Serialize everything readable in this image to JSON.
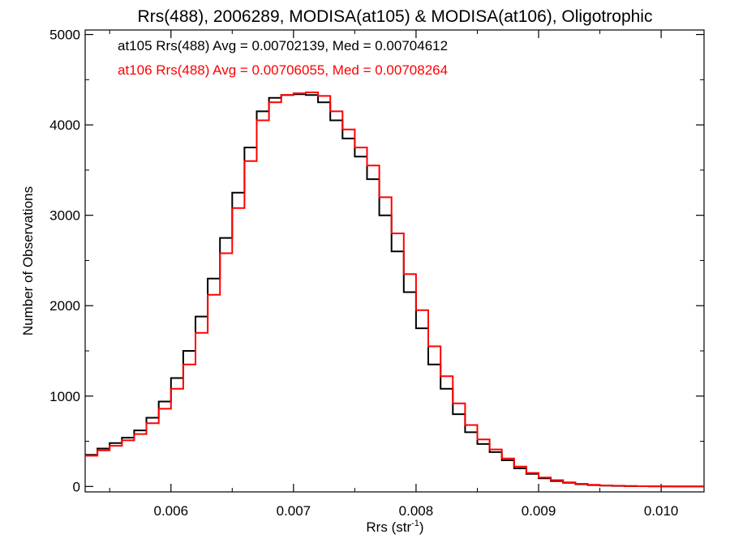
{
  "chart_data": {
    "type": "line",
    "title": "Rrs(488), 2006289, MODISA(at105) & MODISA(at106), Oligotrophic",
    "xlabel_main": "Rrs (str",
    "xlabel_sup": "-1",
    "xlabel_close": ")",
    "ylabel": "Number of Observations",
    "xlim": [
      0.0053,
      0.01035
    ],
    "ylim": [
      -60,
      5050
    ],
    "xticks": [
      0.006,
      0.007,
      0.008,
      0.009,
      0.01
    ],
    "xtick_labels": [
      "0.006",
      "0.007",
      "0.008",
      "0.009",
      "0.010"
    ],
    "yticks": [
      0,
      1000,
      2000,
      3000,
      4000,
      5000
    ],
    "ytick_labels": [
      "0",
      "1000",
      "2000",
      "3000",
      "4000",
      "5000"
    ],
    "annotations": [
      {
        "text": "at105 Rrs(488) Avg = 0.00702139, Med = 0.00704612",
        "color": "#000000"
      },
      {
        "text": "at106 Rrs(488) Avg = 0.00706055, Med = 0.00708264",
        "color": "#ff0000"
      }
    ],
    "series": [
      {
        "color": "#000000",
        "x": [
          0.0053,
          0.0054,
          0.0055,
          0.0056,
          0.0057,
          0.0058,
          0.0059,
          0.006,
          0.0061,
          0.0062,
          0.0063,
          0.0064,
          0.0065,
          0.0066,
          0.0067,
          0.0068,
          0.0069,
          0.007,
          0.0071,
          0.0072,
          0.0073,
          0.0074,
          0.0075,
          0.0076,
          0.0077,
          0.0078,
          0.0079,
          0.008,
          0.0081,
          0.0082,
          0.0083,
          0.0084,
          0.0085,
          0.0086,
          0.0087,
          0.0088,
          0.0089,
          0.009,
          0.0091,
          0.0092,
          0.0093,
          0.0094,
          0.0095,
          0.0096,
          0.0097,
          0.0098,
          0.0099,
          0.01,
          0.0101,
          0.0102,
          0.0103
        ],
        "y": [
          350,
          420,
          480,
          540,
          620,
          760,
          940,
          1200,
          1500,
          1880,
          2300,
          2750,
          3250,
          3750,
          4150,
          4300,
          4330,
          4340,
          4330,
          4250,
          4050,
          3850,
          3650,
          3400,
          3000,
          2600,
          2150,
          1750,
          1350,
          1080,
          800,
          600,
          470,
          380,
          290,
          200,
          140,
          90,
          60,
          40,
          25,
          15,
          10,
          6,
          4,
          3,
          2,
          1,
          1,
          0,
          0
        ]
      },
      {
        "color": "#ff0000",
        "x": [
          0.0053,
          0.0054,
          0.0055,
          0.0056,
          0.0057,
          0.0058,
          0.0059,
          0.006,
          0.0061,
          0.0062,
          0.0063,
          0.0064,
          0.0065,
          0.0066,
          0.0067,
          0.0068,
          0.0069,
          0.007,
          0.0071,
          0.0072,
          0.0073,
          0.0074,
          0.0075,
          0.0076,
          0.0077,
          0.0078,
          0.0079,
          0.008,
          0.0081,
          0.0082,
          0.0083,
          0.0084,
          0.0085,
          0.0086,
          0.0087,
          0.0088,
          0.0089,
          0.009,
          0.0091,
          0.0092,
          0.0093,
          0.0094,
          0.0095,
          0.0096,
          0.0097,
          0.0098,
          0.0099,
          0.01,
          0.0101,
          0.0102,
          0.0103
        ],
        "y": [
          340,
          400,
          450,
          510,
          580,
          700,
          860,
          1080,
          1350,
          1700,
          2120,
          2580,
          3080,
          3600,
          4050,
          4250,
          4330,
          4350,
          4360,
          4320,
          4150,
          3950,
          3750,
          3550,
          3200,
          2800,
          2350,
          1950,
          1550,
          1220,
          920,
          680,
          520,
          410,
          310,
          220,
          150,
          100,
          70,
          45,
          30,
          18,
          12,
          8,
          5,
          3,
          2,
          2,
          1,
          0,
          0
        ]
      }
    ]
  }
}
